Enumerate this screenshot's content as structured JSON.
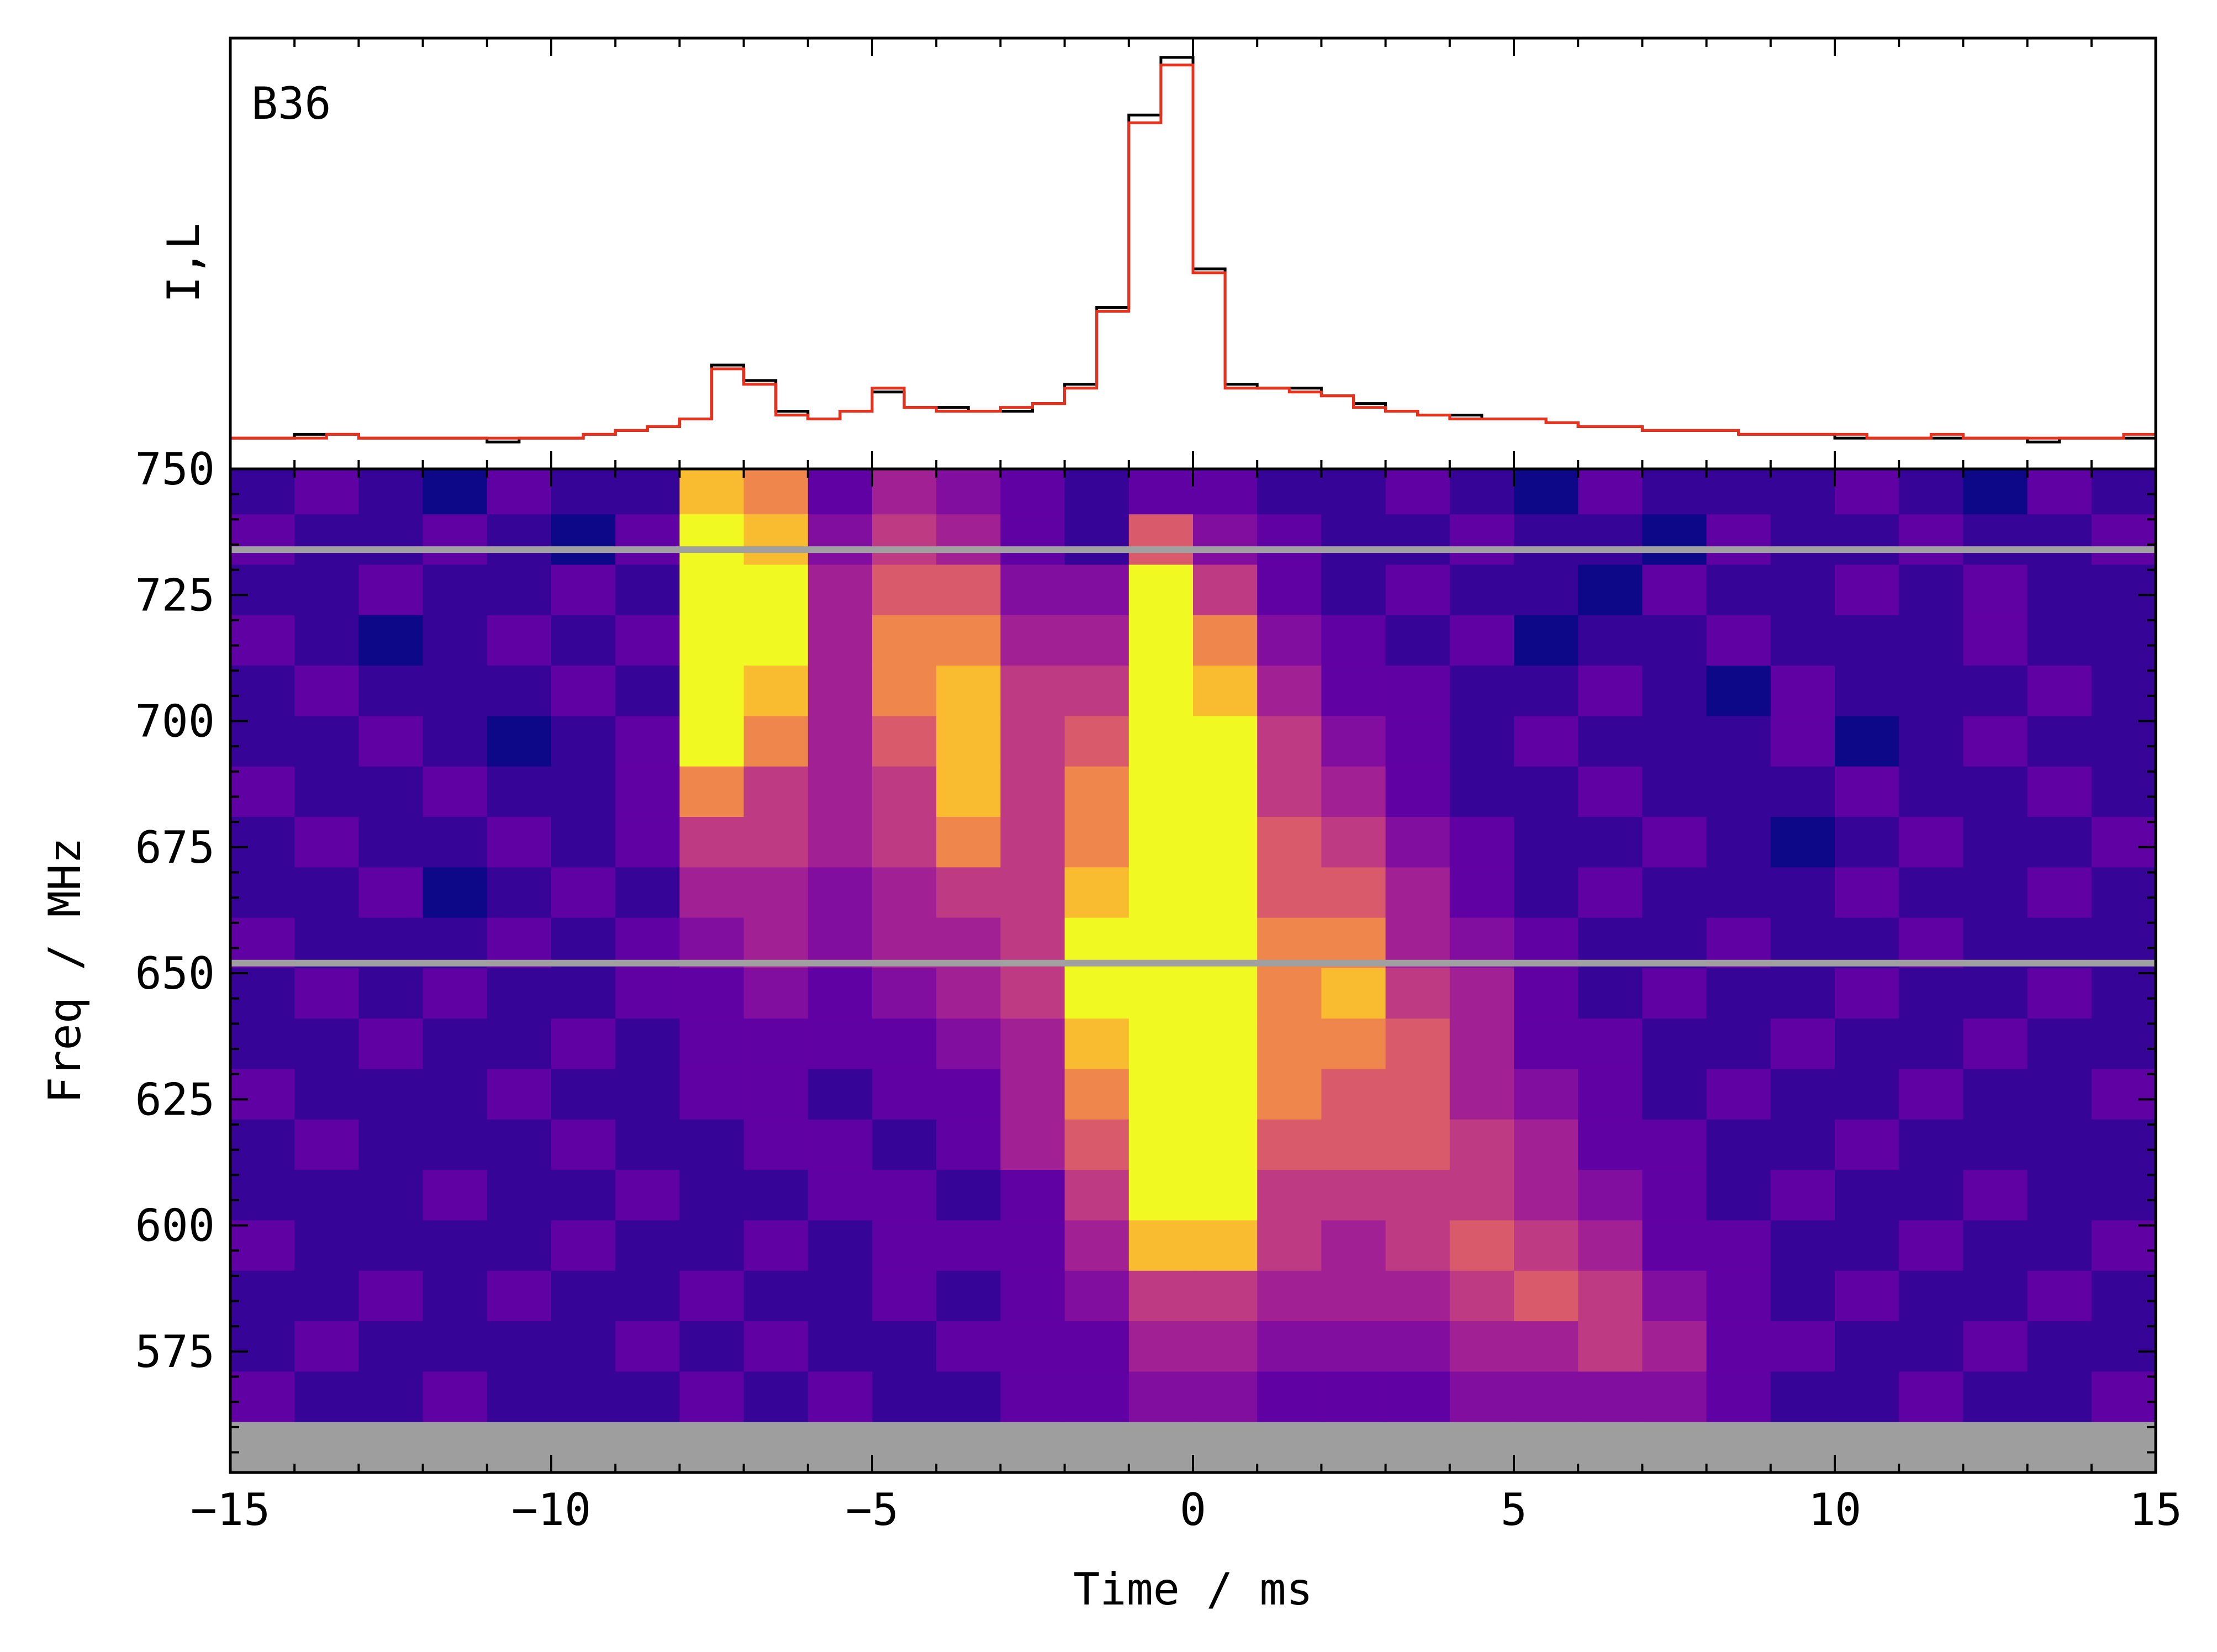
{
  "chart_data": [
    {
      "type": "line",
      "annotation": "B36",
      "ylabel": "I,L",
      "xlim": [
        -15,
        15
      ],
      "ylim": [
        -7,
        105
      ],
      "x": [
        -14.75,
        -14.25,
        -13.75,
        -13.25,
        -12.75,
        -12.25,
        -11.75,
        -11.25,
        -10.75,
        -10.25,
        -9.75,
        -9.25,
        -8.75,
        -8.25,
        -7.75,
        -7.25,
        -6.75,
        -6.25,
        -5.75,
        -5.25,
        -4.75,
        -4.25,
        -3.75,
        -3.25,
        -2.75,
        -2.25,
        -1.75,
        -1.25,
        -0.75,
        -0.25,
        0.25,
        0.75,
        1.25,
        1.75,
        2.25,
        2.75,
        3.25,
        3.75,
        4.25,
        4.75,
        5.25,
        5.75,
        6.25,
        6.75,
        7.25,
        7.75,
        8.25,
        8.75,
        9.25,
        9.75,
        10.25,
        10.75,
        11.25,
        11.75,
        12.25,
        12.75,
        13.25,
        13.75,
        14.25,
        14.75
      ],
      "series": [
        {
          "name": "I",
          "color": "#000000",
          "values": [
            1,
            1,
            2,
            2,
            1,
            1,
            1,
            1,
            0,
            1,
            1,
            2,
            3,
            4,
            6,
            20,
            16,
            8,
            6,
            8,
            13,
            9,
            9,
            8,
            8,
            10,
            15,
            35,
            85,
            100,
            45,
            15,
            14,
            14,
            12,
            10,
            8,
            7,
            7,
            6,
            6,
            5,
            4,
            4,
            3,
            3,
            3,
            2,
            2,
            2,
            1,
            1,
            1,
            1,
            1,
            1,
            0,
            1,
            1,
            1
          ]
        },
        {
          "name": "L",
          "color": "#e8321e",
          "values": [
            1,
            1,
            1,
            2,
            1,
            1,
            1,
            1,
            1,
            1,
            1,
            2,
            3,
            4,
            6,
            19,
            15,
            7,
            6,
            8,
            14,
            9,
            8,
            8,
            9,
            10,
            14,
            34,
            83,
            98,
            44,
            14,
            14,
            13,
            12,
            9,
            8,
            7,
            6,
            6,
            6,
            5,
            4,
            4,
            3,
            3,
            3,
            2,
            2,
            2,
            2,
            1,
            1,
            2,
            1,
            1,
            1,
            1,
            1,
            2
          ]
        }
      ]
    },
    {
      "type": "heatmap",
      "xlabel": "Time / ms",
      "ylabel": "Freq / MHz",
      "colormap": "plasma",
      "xlim": [
        -15,
        15
      ],
      "ylim": [
        551,
        750
      ],
      "xticks": [
        {
          "value": -15,
          "label": "−15"
        },
        {
          "value": -10,
          "label": "−10"
        },
        {
          "value": -5,
          "label": "−5"
        },
        0,
        5,
        10,
        15
      ],
      "xticks_minor": [
        -14,
        -13,
        -12,
        -11,
        -9,
        -8,
        -7,
        -6,
        -4,
        -3,
        -2,
        -1,
        1,
        2,
        3,
        4,
        6,
        7,
        8,
        9,
        11,
        12,
        13,
        14
      ],
      "yticks": [
        575,
        600,
        625,
        650,
        675,
        700,
        725,
        750
      ],
      "yticks_minor": [
        555,
        560,
        565,
        570,
        580,
        585,
        590,
        595,
        605,
        610,
        615,
        620,
        630,
        635,
        640,
        645,
        655,
        660,
        665,
        670,
        680,
        685,
        690,
        695,
        705,
        710,
        715,
        720,
        730,
        735,
        740,
        745
      ],
      "masked_freqs": [
        734,
        652
      ],
      "x": [
        -14.5,
        -13.5,
        -12.5,
        -11.5,
        -10.5,
        -9.5,
        -8.5,
        -7.5,
        -6.5,
        -5.5,
        -4.5,
        -3.5,
        -2.5,
        -1.5,
        -0.5,
        0.5,
        1.5,
        2.5,
        3.5,
        4.5,
        5.5,
        6.5,
        7.5,
        8.5,
        9.5,
        10.5,
        11.5,
        12.5,
        13.5,
        14.5
      ],
      "y": [
        746,
        736,
        726,
        716,
        706,
        696,
        686,
        676,
        666,
        656,
        646,
        636,
        626,
        616,
        606,
        596,
        586,
        576,
        566,
        556
      ],
      "z": [
        [
          2,
          3,
          2,
          1,
          3,
          2,
          2,
          9,
          8,
          3,
          5,
          4,
          3,
          2,
          3,
          3,
          2,
          2,
          3,
          2,
          1,
          3,
          2,
          2,
          2,
          3,
          2,
          1,
          3,
          2
        ],
        [
          3,
          2,
          2,
          3,
          2,
          1,
          3,
          10,
          9,
          4,
          6,
          5,
          3,
          2,
          7,
          4,
          3,
          2,
          2,
          3,
          2,
          2,
          1,
          3,
          2,
          2,
          3,
          2,
          2,
          3
        ],
        [
          2,
          2,
          3,
          2,
          2,
          3,
          2,
          10,
          10,
          5,
          7,
          7,
          4,
          4,
          10,
          6,
          3,
          2,
          3,
          2,
          2,
          1,
          3,
          2,
          2,
          3,
          2,
          3,
          2,
          2
        ],
        [
          3,
          2,
          1,
          2,
          3,
          2,
          3,
          10,
          10,
          5,
          8,
          8,
          5,
          5,
          10,
          8,
          4,
          3,
          2,
          3,
          1,
          2,
          2,
          3,
          2,
          2,
          2,
          3,
          2,
          2
        ],
        [
          2,
          3,
          2,
          2,
          2,
          3,
          2,
          10,
          9,
          5,
          8,
          9,
          6,
          6,
          10,
          9,
          5,
          3,
          3,
          2,
          2,
          3,
          2,
          1,
          3,
          2,
          2,
          2,
          3,
          2
        ],
        [
          2,
          2,
          3,
          2,
          1,
          2,
          3,
          10,
          8,
          5,
          7,
          9,
          6,
          7,
          10,
          10,
          6,
          4,
          3,
          2,
          3,
          2,
          2,
          2,
          3,
          1,
          2,
          3,
          2,
          2
        ],
        [
          3,
          2,
          2,
          3,
          2,
          2,
          3,
          8,
          6,
          5,
          6,
          9,
          6,
          8,
          10,
          10,
          6,
          5,
          3,
          2,
          2,
          3,
          2,
          2,
          2,
          3,
          2,
          2,
          3,
          2
        ],
        [
          2,
          3,
          2,
          2,
          3,
          2,
          3,
          6,
          6,
          5,
          6,
          8,
          6,
          8,
          10,
          10,
          7,
          6,
          4,
          3,
          2,
          2,
          3,
          2,
          1,
          2,
          3,
          2,
          2,
          3
        ],
        [
          2,
          2,
          3,
          1,
          2,
          3,
          2,
          5,
          5,
          4,
          5,
          6,
          6,
          9,
          10,
          10,
          7,
          7,
          5,
          3,
          2,
          3,
          2,
          2,
          2,
          3,
          2,
          2,
          3,
          2
        ],
        [
          3,
          2,
          2,
          2,
          3,
          2,
          3,
          4,
          5,
          4,
          5,
          5,
          6,
          10,
          10,
          10,
          8,
          8,
          5,
          4,
          3,
          2,
          2,
          3,
          2,
          2,
          3,
          2,
          2,
          2
        ],
        [
          2,
          3,
          2,
          3,
          2,
          2,
          3,
          3,
          4,
          3,
          4,
          5,
          6,
          10,
          10,
          10,
          8,
          9,
          6,
          5,
          3,
          2,
          3,
          2,
          2,
          3,
          2,
          2,
          3,
          2
        ],
        [
          2,
          2,
          3,
          2,
          2,
          3,
          2,
          3,
          3,
          3,
          3,
          4,
          5,
          9,
          10,
          10,
          8,
          8,
          7,
          5,
          3,
          3,
          2,
          2,
          3,
          2,
          2,
          3,
          2,
          2
        ],
        [
          3,
          2,
          2,
          2,
          3,
          2,
          2,
          3,
          3,
          2,
          3,
          3,
          5,
          8,
          10,
          10,
          8,
          7,
          7,
          5,
          4,
          3,
          2,
          3,
          2,
          2,
          3,
          2,
          2,
          3
        ],
        [
          2,
          3,
          2,
          2,
          2,
          3,
          2,
          2,
          3,
          3,
          2,
          3,
          5,
          7,
          10,
          10,
          7,
          7,
          7,
          6,
          5,
          3,
          3,
          2,
          2,
          3,
          2,
          2,
          2,
          2
        ],
        [
          2,
          2,
          2,
          3,
          2,
          2,
          3,
          2,
          2,
          3,
          3,
          2,
          3,
          6,
          10,
          10,
          6,
          6,
          6,
          6,
          5,
          4,
          3,
          2,
          3,
          2,
          2,
          3,
          2,
          2
        ],
        [
          3,
          2,
          2,
          2,
          2,
          3,
          2,
          2,
          3,
          2,
          3,
          3,
          3,
          5,
          9,
          9,
          6,
          5,
          6,
          7,
          6,
          5,
          3,
          3,
          2,
          2,
          3,
          2,
          2,
          3
        ],
        [
          2,
          2,
          3,
          2,
          3,
          2,
          2,
          3,
          2,
          2,
          3,
          2,
          3,
          4,
          6,
          6,
          5,
          5,
          5,
          6,
          7,
          6,
          4,
          3,
          2,
          3,
          2,
          2,
          3,
          2
        ],
        [
          2,
          3,
          2,
          2,
          2,
          2,
          3,
          2,
          3,
          2,
          2,
          3,
          3,
          3,
          5,
          5,
          4,
          4,
          4,
          5,
          5,
          6,
          5,
          3,
          3,
          2,
          2,
          3,
          2,
          2
        ],
        [
          3,
          2,
          2,
          3,
          2,
          2,
          2,
          3,
          2,
          3,
          2,
          2,
          3,
          3,
          4,
          4,
          3,
          3,
          3,
          4,
          4,
          4,
          4,
          3,
          2,
          2,
          3,
          2,
          2,
          3
        ],
        [
          null,
          null,
          null,
          null,
          null,
          null,
          null,
          null,
          null,
          null,
          null,
          null,
          null,
          null,
          null,
          null,
          null,
          null,
          null,
          null,
          null,
          null,
          null,
          null,
          null,
          null,
          null,
          null,
          null,
          null
        ]
      ]
    }
  ]
}
